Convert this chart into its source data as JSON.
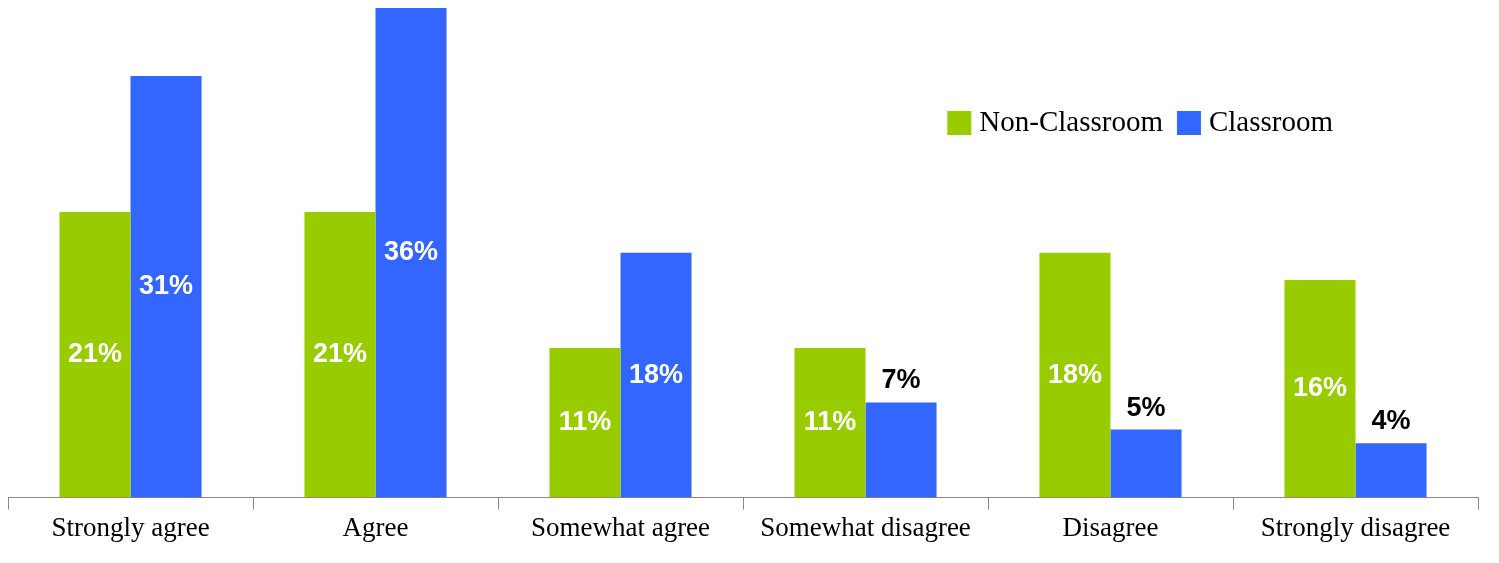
{
  "chart_data": {
    "type": "bar",
    "categories": [
      "Strongly agree",
      "Agree",
      "Somewhat agree",
      "Somewhat disagree",
      "Disagree",
      "Strongly disagree"
    ],
    "series": [
      {
        "name": "Non-Classroom",
        "color": "#99cc00",
        "values": [
          21,
          21,
          11,
          11,
          18,
          16
        ],
        "value_labels": [
          "21%",
          "21%",
          "11%",
          "11%",
          "18%",
          "16%"
        ]
      },
      {
        "name": "Classroom",
        "color": "#3366ff",
        "values": [
          31,
          36,
          18,
          7,
          5,
          4
        ],
        "value_labels": [
          "31%",
          "36%",
          "18%",
          "7%",
          "5%",
          "4%"
        ]
      }
    ],
    "legend": "top right",
    "grid": false
  }
}
